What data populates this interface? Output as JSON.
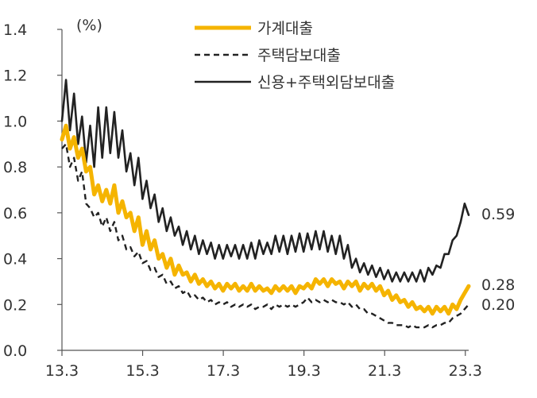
{
  "chart_data": {
    "type": "line",
    "unit_label": "(%)",
    "ylim": [
      0.0,
      1.4
    ],
    "y_ticks": [
      "0.0",
      "0.2",
      "0.4",
      "0.6",
      "0.8",
      "1.0",
      "1.2",
      "1.4"
    ],
    "x_ticks": [
      "13.3",
      "15.3",
      "17.3",
      "19.3",
      "21.3",
      "23.3"
    ],
    "x_start": "13.3",
    "x_end": "23.4",
    "grid": false,
    "legend_position": "top",
    "series": [
      {
        "name": "가계대출",
        "color": "#F5B400",
        "style": "solid",
        "end_label": "0.28",
        "values": [
          0.92,
          0.98,
          0.88,
          0.93,
          0.84,
          0.88,
          0.78,
          0.8,
          0.68,
          0.72,
          0.65,
          0.7,
          0.64,
          0.72,
          0.6,
          0.65,
          0.58,
          0.6,
          0.52,
          0.58,
          0.46,
          0.52,
          0.44,
          0.48,
          0.4,
          0.42,
          0.36,
          0.4,
          0.33,
          0.37,
          0.33,
          0.34,
          0.3,
          0.33,
          0.29,
          0.31,
          0.28,
          0.3,
          0.27,
          0.29,
          0.26,
          0.29,
          0.27,
          0.29,
          0.26,
          0.28,
          0.26,
          0.29,
          0.26,
          0.28,
          0.26,
          0.27,
          0.25,
          0.28,
          0.26,
          0.28,
          0.26,
          0.28,
          0.25,
          0.28,
          0.27,
          0.29,
          0.27,
          0.31,
          0.29,
          0.31,
          0.28,
          0.31,
          0.29,
          0.3,
          0.27,
          0.3,
          0.28,
          0.3,
          0.26,
          0.29,
          0.27,
          0.29,
          0.26,
          0.28,
          0.24,
          0.26,
          0.22,
          0.24,
          0.21,
          0.22,
          0.19,
          0.21,
          0.18,
          0.19,
          0.17,
          0.19,
          0.16,
          0.19,
          0.17,
          0.19,
          0.16,
          0.2,
          0.18,
          0.22,
          0.25,
          0.28
        ]
      },
      {
        "name": "주택담보대출",
        "color": "#222222",
        "style": "dashed",
        "end_label": "0.20",
        "values": [
          0.88,
          0.9,
          0.8,
          0.84,
          0.74,
          0.78,
          0.64,
          0.62,
          0.58,
          0.6,
          0.54,
          0.58,
          0.52,
          0.56,
          0.48,
          0.5,
          0.44,
          0.45,
          0.41,
          0.43,
          0.38,
          0.39,
          0.35,
          0.36,
          0.32,
          0.33,
          0.29,
          0.3,
          0.27,
          0.28,
          0.25,
          0.26,
          0.23,
          0.24,
          0.22,
          0.23,
          0.21,
          0.22,
          0.2,
          0.21,
          0.2,
          0.21,
          0.19,
          0.2,
          0.19,
          0.2,
          0.19,
          0.2,
          0.18,
          0.19,
          0.19,
          0.2,
          0.18,
          0.2,
          0.19,
          0.2,
          0.19,
          0.2,
          0.19,
          0.2,
          0.21,
          0.23,
          0.21,
          0.22,
          0.21,
          0.22,
          0.21,
          0.22,
          0.21,
          0.21,
          0.2,
          0.21,
          0.19,
          0.2,
          0.18,
          0.18,
          0.16,
          0.16,
          0.15,
          0.14,
          0.13,
          0.12,
          0.12,
          0.11,
          0.11,
          0.11,
          0.1,
          0.11,
          0.1,
          0.1,
          0.1,
          0.11,
          0.1,
          0.11,
          0.11,
          0.12,
          0.12,
          0.14,
          0.15,
          0.16,
          0.18,
          0.2
        ]
      },
      {
        "name": "신용+주택외담보대출",
        "color": "#222222",
        "style": "solid",
        "end_label": "0.59",
        "values": [
          1.0,
          1.18,
          0.96,
          1.12,
          0.9,
          1.02,
          0.82,
          0.98,
          0.8,
          1.06,
          0.84,
          1.06,
          0.86,
          1.04,
          0.84,
          0.96,
          0.78,
          0.86,
          0.72,
          0.84,
          0.66,
          0.74,
          0.62,
          0.68,
          0.56,
          0.62,
          0.52,
          0.58,
          0.5,
          0.54,
          0.46,
          0.52,
          0.44,
          0.5,
          0.42,
          0.48,
          0.42,
          0.47,
          0.4,
          0.46,
          0.4,
          0.46,
          0.41,
          0.46,
          0.4,
          0.46,
          0.4,
          0.47,
          0.4,
          0.48,
          0.42,
          0.47,
          0.42,
          0.5,
          0.43,
          0.5,
          0.42,
          0.5,
          0.43,
          0.51,
          0.43,
          0.51,
          0.44,
          0.52,
          0.44,
          0.52,
          0.43,
          0.5,
          0.42,
          0.5,
          0.4,
          0.46,
          0.36,
          0.4,
          0.34,
          0.38,
          0.33,
          0.37,
          0.32,
          0.36,
          0.31,
          0.35,
          0.3,
          0.34,
          0.3,
          0.34,
          0.3,
          0.34,
          0.3,
          0.35,
          0.3,
          0.36,
          0.33,
          0.37,
          0.36,
          0.42,
          0.42,
          0.48,
          0.5,
          0.56,
          0.64,
          0.59
        ]
      }
    ]
  }
}
